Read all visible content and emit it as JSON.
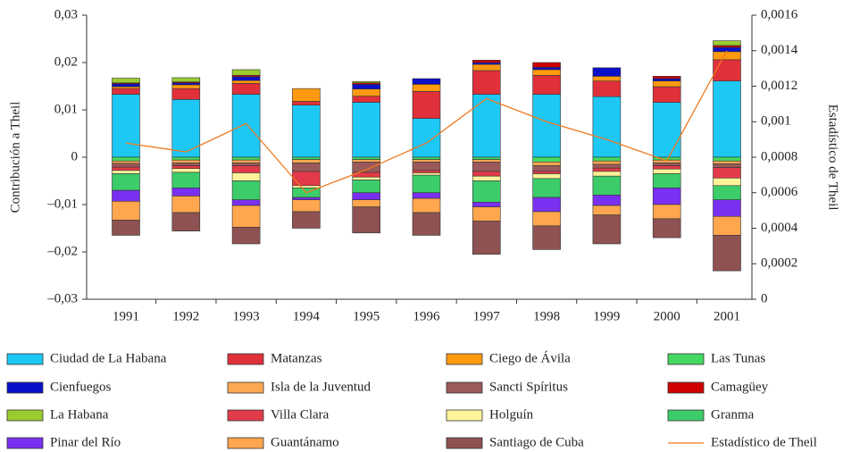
{
  "chart_data": {
    "type": "bar",
    "stacked": true,
    "y_label": "Contribución a Theil",
    "y2_label": "Estadístico de Theil",
    "categories": [
      "1991",
      "1992",
      "1993",
      "1994",
      "1995",
      "1996",
      "1997",
      "1998",
      "1999",
      "2000",
      "2001"
    ],
    "ylim": [
      -0.03,
      0.03
    ],
    "yticks": [
      {
        "value": -0.03,
        "label": "–0,03"
      },
      {
        "value": -0.02,
        "label": "–0,02"
      },
      {
        "value": -0.01,
        "label": "–0,01"
      },
      0,
      {
        "value": 0.01,
        "label": "0,01"
      },
      {
        "value": 0.02,
        "label": "0,02"
      },
      {
        "value": 0.03,
        "label": "0,03"
      }
    ],
    "y2lim": [
      0,
      0.0016
    ],
    "y2ticks": [
      0,
      {
        "value": 0.0002,
        "label": "0,0002"
      },
      {
        "value": 0.0004,
        "label": "0,0004"
      },
      {
        "value": 0.0006,
        "label": "0,0006"
      },
      {
        "value": 0.0008,
        "label": "0,0008"
      },
      {
        "value": 0.001,
        "label": "0,001"
      },
      {
        "value": 0.0012,
        "label": "0,0012"
      },
      {
        "value": 0.0014,
        "label": "0,0014"
      },
      {
        "value": 0.0016,
        "label": "0,0016"
      }
    ],
    "series": [
      {
        "name": "Ciudad de La Habana",
        "color": "#1ec8f5",
        "values": [
          0.0133,
          0.0122,
          0.0133,
          0.011,
          0.0116,
          0.0082,
          0.0133,
          0.0133,
          0.0128,
          0.0116,
          0.0161
        ]
      },
      {
        "name": "Matanzas",
        "color": "#e0303a",
        "values": [
          0.0012,
          0.0023,
          0.0023,
          0.0008,
          0.0013,
          0.0057,
          0.005,
          0.004,
          0.0033,
          0.0033,
          0.0045
        ]
      },
      {
        "name": "Ciego de Ávila",
        "color": "#ff9a10",
        "values": [
          0.0004,
          0.0008,
          0.0006,
          0.0027,
          0.0015,
          0.0015,
          0.0013,
          0.0012,
          0.001,
          0.0012,
          0.0017
        ]
      },
      {
        "name": "Las Tunas",
        "color": "#44d860",
        "values": [
          -0.0008,
          -0.0006,
          -0.0006,
          -0.0005,
          -0.0005,
          -0.0005,
          -0.0005,
          -0.001,
          -0.0008,
          -0.0006,
          -0.0008
        ]
      },
      {
        "name": "Cienfuegos",
        "color": "#0a10c8",
        "values": [
          0.0006,
          0.0004,
          0.0008,
          0,
          0.001,
          0.0012,
          0.0004,
          0.0005,
          0.0018,
          0.0005,
          0.0009
        ]
      },
      {
        "name": "Isla de la Juventud",
        "color": "#fca850",
        "values": [
          -0.0005,
          -0.0006,
          -0.0006,
          -0.0007,
          -0.0005,
          -0.0005,
          -0.0005,
          -0.0008,
          -0.0007,
          -0.0006,
          -0.0006
        ]
      },
      {
        "name": "Sancti Spíritus",
        "color": "#9a5a5a",
        "values": [
          -0.0008,
          -0.0006,
          -0.0006,
          -0.0018,
          -0.0022,
          -0.0018,
          -0.002,
          -0.0012,
          -0.0008,
          -0.0006,
          -0.0008
        ]
      },
      {
        "name": "Camagüey",
        "color": "#d00000",
        "values": [
          0.0002,
          0.0002,
          0.0003,
          0,
          0.0003,
          0,
          0.0005,
          0.001,
          0,
          0.0005,
          0.0004
        ]
      },
      {
        "name": "La Habana",
        "color": "#9acc30",
        "values": [
          0.001,
          0.0009,
          0.0012,
          0,
          0.0003,
          0,
          0,
          0,
          0,
          0,
          0.001
        ]
      },
      {
        "name": "Villa Clara",
        "color": "#e23a48",
        "values": [
          -0.0007,
          -0.0006,
          -0.0015,
          -0.003,
          -0.001,
          -0.0005,
          -0.001,
          -0.0005,
          -0.0007,
          -0.0007,
          -0.0022
        ]
      },
      {
        "name": "Holguín",
        "color": "#fff39a",
        "values": [
          -0.0007,
          -0.0008,
          -0.0017,
          -0.0005,
          -0.0006,
          -0.0005,
          -0.001,
          -0.001,
          -0.001,
          -0.001,
          -0.0016
        ]
      },
      {
        "name": "Granma",
        "color": "#3ccc6a",
        "values": [
          -0.0035,
          -0.0033,
          -0.004,
          -0.002,
          -0.0027,
          -0.0037,
          -0.0045,
          -0.004,
          -0.004,
          -0.003,
          -0.003
        ]
      },
      {
        "name": "Pinar del Río",
        "color": "#7a30f0",
        "values": [
          -0.0023,
          -0.0017,
          -0.0012,
          -0.0005,
          -0.0015,
          -0.0012,
          -0.001,
          -0.003,
          -0.0022,
          -0.0035,
          -0.0035
        ]
      },
      {
        "name": "Guantánamo",
        "color": "#ffa64e",
        "values": [
          -0.004,
          -0.0035,
          -0.0046,
          -0.0025,
          -0.0015,
          -0.003,
          -0.003,
          -0.003,
          -0.002,
          -0.003,
          -0.004
        ]
      },
      {
        "name": "Santiago de Cuba",
        "color": "#8e5252",
        "values": [
          -0.0032,
          -0.0039,
          -0.0035,
          -0.0035,
          -0.0055,
          -0.0048,
          -0.007,
          -0.005,
          -0.0061,
          -0.004,
          -0.0075
        ]
      },
      {
        "name": "Estadístico de Theil",
        "color": "#f07820",
        "type": "line",
        "axis": "y2",
        "values": [
          0.00088,
          0.00083,
          0.00099,
          0.0006,
          0.00073,
          0.00088,
          0.00113,
          0.001,
          0.0009,
          0.00078,
          0.0014
        ]
      }
    ]
  }
}
